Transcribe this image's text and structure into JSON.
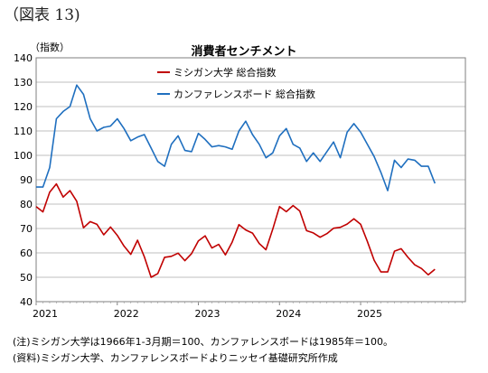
{
  "figure_label": "（図表 13)",
  "notes": [
    "(注)ミシガン大学は1966年1-3月期＝100、カンファレンスボードは1985年＝100。",
    "(資料)ミシガン大学、カンファレンスボードよりニッセイ基礎研究所作成"
  ],
  "chart_data": {
    "type": "line",
    "title": "消費者センチメント",
    "ylabel": "（指数）",
    "ylim": [
      40,
      140
    ],
    "yticks": [
      40,
      50,
      60,
      70,
      80,
      90,
      100,
      110,
      120,
      130,
      140
    ],
    "xtick_labels": [
      "2021",
      "2022",
      "2023",
      "2024",
      "2025"
    ],
    "x_start": "2021-01",
    "grid": true,
    "series": [
      {
        "name": "ミシガン大学 総合指数",
        "color": "#c00000",
        "values": [
          79.0,
          76.8,
          84.9,
          88.3,
          82.9,
          85.5,
          81.2,
          70.3,
          72.8,
          71.7,
          67.4,
          70.6,
          67.2,
          62.8,
          59.4,
          65.2,
          58.4,
          50.0,
          51.5,
          58.2,
          58.6,
          59.9,
          56.8,
          59.7,
          64.9,
          67.0,
          62.0,
          63.5,
          59.2,
          64.4,
          71.6,
          69.4,
          68.1,
          63.8,
          61.3,
          69.7,
          79.0,
          76.9,
          79.4,
          77.2,
          69.1,
          68.2,
          66.4,
          67.9,
          70.1,
          70.5,
          71.8,
          74.0,
          71.7,
          64.7,
          57.0,
          52.2,
          52.2,
          60.7,
          61.7,
          58.2,
          55.1,
          53.6,
          51.0,
          53.3
        ]
      },
      {
        "name": "カンファレンスボード 総合指数",
        "color": "#1f6fbf",
        "values": [
          87.0,
          87.0,
          95.0,
          115.0,
          118.0,
          120.0,
          128.8,
          125.0,
          115.0,
          110.0,
          111.5,
          112.0,
          115.0,
          111.0,
          106.0,
          107.5,
          108.5,
          103.0,
          97.5,
          95.5,
          104.5,
          108.0,
          102.0,
          101.5,
          109.0,
          106.5,
          103.5,
          104.0,
          103.5,
          102.5,
          110.0,
          114.0,
          108.5,
          104.5,
          99.0,
          101.0,
          108.0,
          111.0,
          104.5,
          103.0,
          97.5,
          101.0,
          97.5,
          101.5,
          105.5,
          99.0,
          109.5,
          113.0,
          109.5,
          104.5,
          99.5,
          93.0,
          85.5,
          98.0,
          95.0,
          98.5,
          98.0,
          95.5,
          95.5,
          88.5
        ]
      }
    ]
  }
}
